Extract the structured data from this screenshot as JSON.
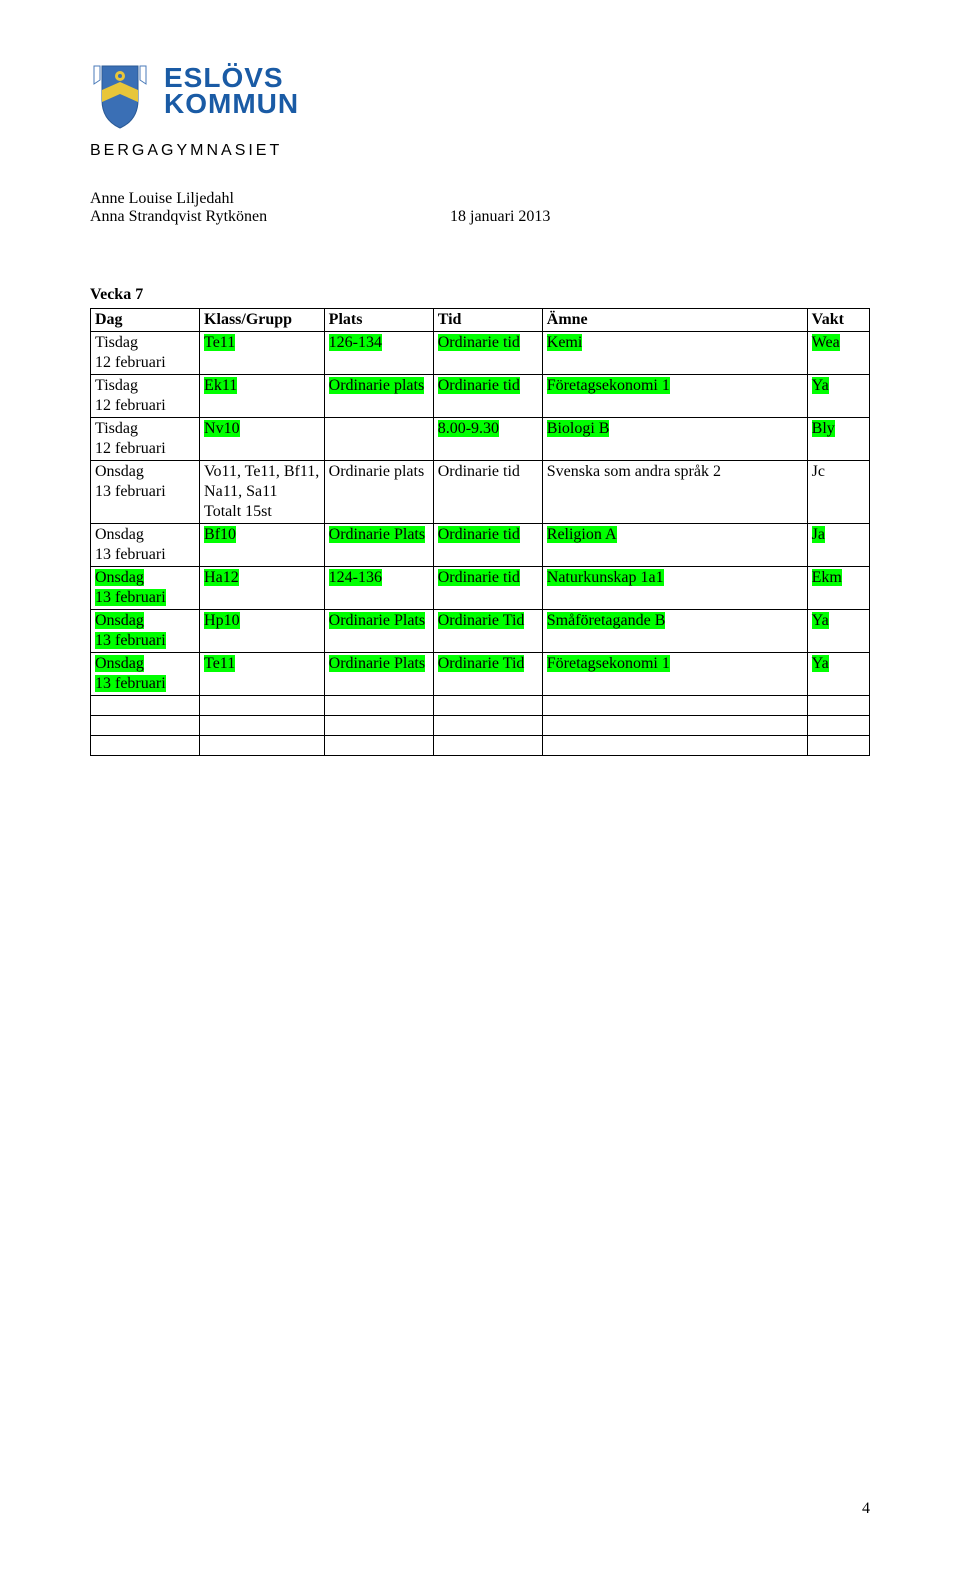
{
  "brand": {
    "line1": "ESLÖVS",
    "line2": "KOMMUN",
    "sub": "BERGAGYMNASIET"
  },
  "meta": {
    "author1": "Anne Louise Liljedahl",
    "author2": "Anna Strandqvist Rytkönen",
    "date": "18 januari 2013"
  },
  "week_title": "Vecka 7",
  "columns": [
    "Dag",
    "Klass/Grupp",
    "Plats",
    "Tid",
    "Ämne",
    "Vakt"
  ],
  "rows": [
    {
      "cells": [
        {
          "text": "Tisdag\n12 februari",
          "hl": false
        },
        {
          "text": "Te11",
          "hl": true
        },
        {
          "text": "126-134",
          "hl": true
        },
        {
          "text": "Ordinarie tid",
          "hl": true
        },
        {
          "text": "Kemi",
          "hl": true
        },
        {
          "text": "Wea",
          "hl": true
        }
      ]
    },
    {
      "cells": [
        {
          "text": "Tisdag\n12 februari",
          "hl": false
        },
        {
          "text": "Ek11",
          "hl": true
        },
        {
          "text": "Ordinarie plats",
          "hl": true
        },
        {
          "text": "Ordinarie tid",
          "hl": true
        },
        {
          "text": "Företagsekonomi 1",
          "hl": true
        },
        {
          "text": "Ya",
          "hl": true
        }
      ]
    },
    {
      "cells": [
        {
          "text": "Tisdag\n12 februari",
          "hl": false
        },
        {
          "text": "Nv10",
          "hl": true
        },
        {
          "text": "",
          "hl": false
        },
        {
          "text": "8.00-9.30",
          "hl": true
        },
        {
          "text": "Biologi B",
          "hl": true
        },
        {
          "text": "Bly",
          "hl": true
        }
      ]
    },
    {
      "cells": [
        {
          "text": "Onsdag\n13 februari",
          "hl": false
        },
        {
          "text": "Vo11, Te11, Bf11, Na11, Sa11\nTotalt 15st",
          "hl": false
        },
        {
          "text": "Ordinarie plats",
          "hl": false
        },
        {
          "text": "Ordinarie tid",
          "hl": false
        },
        {
          "text": "Svenska som andra språk 2",
          "hl": false
        },
        {
          "text": "Jc",
          "hl": false
        }
      ]
    },
    {
      "cells": [
        {
          "text": "Onsdag\n13 februari",
          "hl": false
        },
        {
          "text": "Bf10",
          "hl": true
        },
        {
          "text": "Ordinarie Plats",
          "hl": true
        },
        {
          "text": "Ordinarie tid",
          "hl": true
        },
        {
          "text": "Religion A",
          "hl": true
        },
        {
          "text": "Ja",
          "hl": true
        }
      ]
    },
    {
      "cells": [
        {
          "text": "Onsdag\n13 februari",
          "hl": true
        },
        {
          "text": "Ha12",
          "hl": true
        },
        {
          "text": "124-136",
          "hl": true
        },
        {
          "text": "Ordinarie tid",
          "hl": true
        },
        {
          "text": "Naturkunskap 1a1",
          "hl": true
        },
        {
          "text": "Ekm",
          "hl": true
        }
      ]
    },
    {
      "cells": [
        {
          "text": "Onsdag\n13 februari",
          "hl": true
        },
        {
          "text": "Hp10",
          "hl": true
        },
        {
          "text": "Ordinarie Plats",
          "hl": true
        },
        {
          "text": "Ordinarie Tid",
          "hl": true
        },
        {
          "text": "Småföretagande B",
          "hl": true
        },
        {
          "text": "Ya",
          "hl": true
        }
      ]
    },
    {
      "cells": [
        {
          "text": "Onsdag\n13 februari",
          "hl": true
        },
        {
          "text": "Te11",
          "hl": true
        },
        {
          "text": "Ordinarie Plats",
          "hl": true
        },
        {
          "text": "Ordinarie Tid",
          "hl": true
        },
        {
          "text": "Företagsekonomi 1",
          "hl": true
        },
        {
          "text": "Ya",
          "hl": true
        }
      ]
    }
  ],
  "empty_rows": 3,
  "page_number": "4",
  "colors": {
    "highlight": "#00ff00",
    "brand_blue": "#1a5ba5",
    "shield_blue": "#3a6fb5",
    "shield_yellow": "#e8c63a",
    "flag_outline": "#4a7ab8"
  }
}
